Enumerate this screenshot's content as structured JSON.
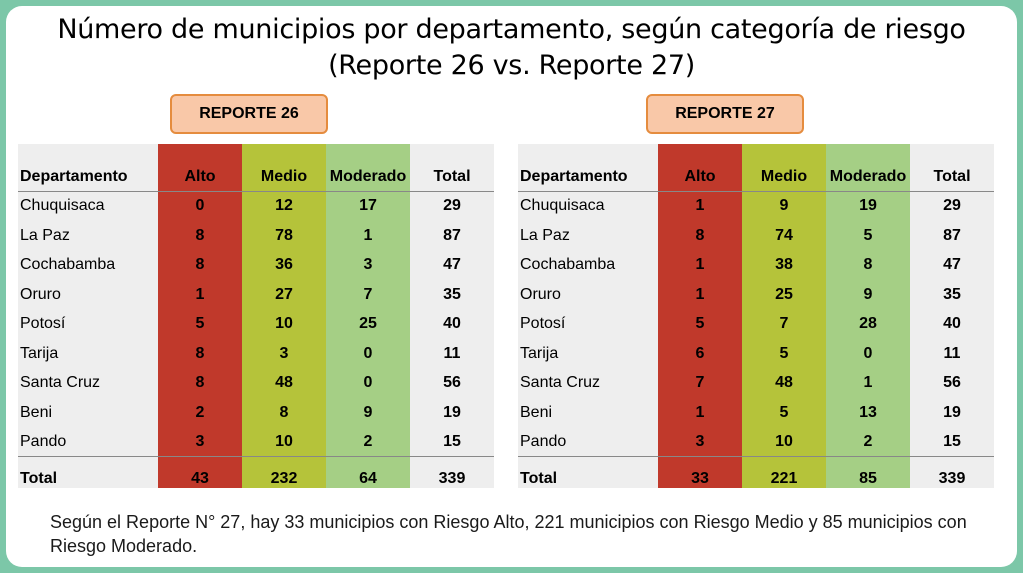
{
  "title_line1": "Número de municipios por departamento, según categoría de riesgo",
  "title_line2": "(Reporte 26 vs. Reporte 27)",
  "colors": {
    "alto": "#c0392b",
    "medio": "#b5c33a",
    "moderado": "#a5cf85",
    "label_bg": "#f9c8a8",
    "label_border": "#e58c3e"
  },
  "tables": [
    {
      "label": "REPORTE 26",
      "headers": [
        "Departamento",
        "Alto",
        "Medio",
        "Moderado",
        "Total"
      ],
      "rows": [
        [
          "Chuquisaca",
          "0",
          "12",
          "17",
          "29"
        ],
        [
          "La Paz",
          "8",
          "78",
          "1",
          "87"
        ],
        [
          "Cochabamba",
          "8",
          "36",
          "3",
          "47"
        ],
        [
          "Oruro",
          "1",
          "27",
          "7",
          "35"
        ],
        [
          "Potosí",
          "5",
          "10",
          "25",
          "40"
        ],
        [
          "Tarija",
          "8",
          "3",
          "0",
          "11"
        ],
        [
          "Santa Cruz",
          "8",
          "48",
          "0",
          "56"
        ],
        [
          "Beni",
          "2",
          "8",
          "9",
          "19"
        ],
        [
          "Pando",
          "3",
          "10",
          "2",
          "15"
        ]
      ],
      "total": [
        "Total",
        "43",
        "232",
        "64",
        "339"
      ]
    },
    {
      "label": "REPORTE 27",
      "headers": [
        "Departamento",
        "Alto",
        "Medio",
        "Moderado",
        "Total"
      ],
      "rows": [
        [
          "Chuquisaca",
          "1",
          "9",
          "19",
          "29"
        ],
        [
          "La Paz",
          "8",
          "74",
          "5",
          "87"
        ],
        [
          "Cochabamba",
          "1",
          "38",
          "8",
          "47"
        ],
        [
          "Oruro",
          "1",
          "25",
          "9",
          "35"
        ],
        [
          "Potosí",
          "5",
          "7",
          "28",
          "40"
        ],
        [
          "Tarija",
          "6",
          "5",
          "0",
          "11"
        ],
        [
          "Santa Cruz",
          "7",
          "48",
          "1",
          "56"
        ],
        [
          "Beni",
          "1",
          "5",
          "13",
          "19"
        ],
        [
          "Pando",
          "3",
          "10",
          "2",
          "15"
        ]
      ],
      "total": [
        "Total",
        "33",
        "221",
        "85",
        "339"
      ]
    }
  ],
  "caption": "Según el Reporte N° 27, hay 33 municipios con Riesgo Alto, 221 municipios con Riesgo Medio y 85 municipios con Riesgo Moderado."
}
